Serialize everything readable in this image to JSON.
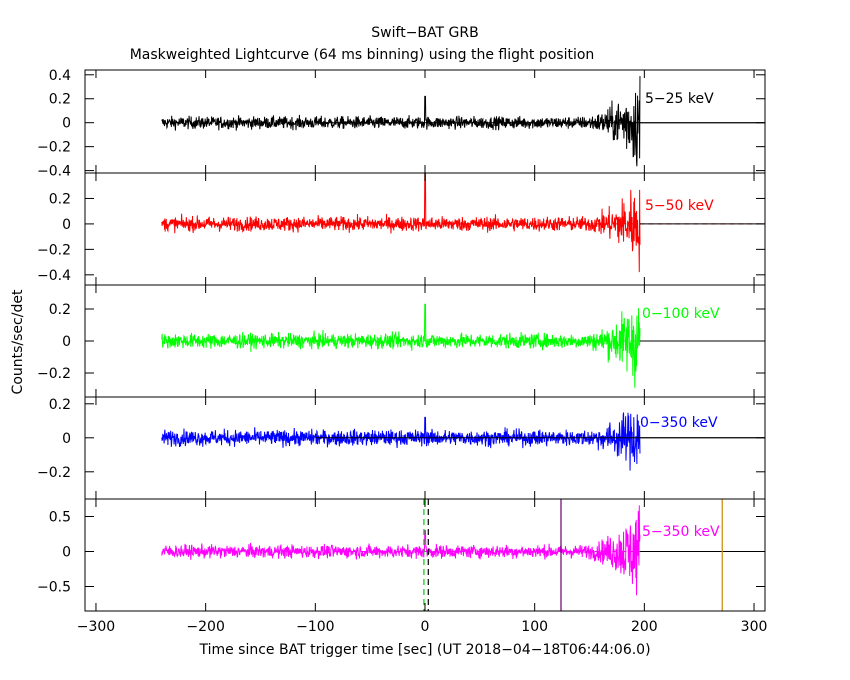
{
  "chart_data": {
    "type": "line",
    "title": "Swift−BAT GRB",
    "subtitle": "Maskweighted Lightcurve (64 ms binning) using the flight position",
    "xlabel": "Time since BAT trigger time [sec] (UT 2018−04−18T06:44:06.0)",
    "ylabel": "Counts/sec/det",
    "xlim": [
      -310,
      310
    ],
    "x_ticks": [
      -300,
      -200,
      -100,
      0,
      100,
      200,
      300
    ],
    "x_tick_labels": [
      "−300",
      "−200",
      "−100",
      "0",
      "100",
      "200",
      "300"
    ],
    "data_range": [
      -240,
      196
    ],
    "panels": [
      {
        "label": "5−25 keV",
        "color": "#000000",
        "ylim": [
          -0.42,
          0.44
        ],
        "ticks": [
          -0.4,
          -0.2,
          0,
          0.2,
          0.4
        ],
        "tick_labels": [
          "−0.4",
          "−0.2",
          "0",
          "0.2",
          "0.4"
        ],
        "noise_amplitude": 0.05,
        "spike_value": 0.22,
        "end_burst_peak": 0.4,
        "zero_line": "solid",
        "marks": []
      },
      {
        "label": "5−50 keV",
        "color": "#ff0000",
        "ylim": [
          -0.48,
          0.4
        ],
        "ticks": [
          -0.4,
          -0.2,
          0,
          0.2
        ],
        "tick_labels": [
          "−0.4",
          "−0.2",
          "0",
          "0.2"
        ],
        "noise_amplitude": 0.055,
        "spike_value": 0.4,
        "end_burst_peak": 0.35,
        "zero_line": "dashed",
        "marks": []
      },
      {
        "label": "0−100 keV",
        "color": "#00ff00",
        "ylim": [
          -0.35,
          0.35
        ],
        "ticks": [
          -0.2,
          0,
          0.2
        ],
        "tick_labels": [
          "−0.2",
          "0",
          "0.2"
        ],
        "noise_amplitude": 0.045,
        "spike_value": 0.23,
        "end_burst_peak": 0.3,
        "zero_line": "dashed",
        "marks": []
      },
      {
        "label": "0−350 keV",
        "color": "#0000ff",
        "ylim": [
          -0.36,
          0.24
        ],
        "ticks": [
          -0.2,
          0,
          0.2
        ],
        "tick_labels": [
          "−0.2",
          "0",
          "0.2"
        ],
        "noise_amplitude": 0.045,
        "spike_value": 0.12,
        "end_burst_peak": 0.22,
        "zero_line": "solid",
        "marks": []
      },
      {
        "label": "5−350 keV",
        "color": "#ff00ff",
        "ylim": [
          -0.85,
          0.75
        ],
        "ticks": [
          -0.5,
          0,
          0.5
        ],
        "tick_labels": [
          "−0.5",
          "0",
          "0.5"
        ],
        "noise_amplitude": 0.09,
        "spike_value": 0.3,
        "end_burst_peak": 0.7,
        "zero_line": "dashed",
        "marks": [
          {
            "x": -1,
            "color": "#00cc00",
            "style": "dashed"
          },
          {
            "x": 3,
            "color": "#000000",
            "style": "dashed"
          },
          {
            "x": 124,
            "color": "#660066",
            "style": "solid"
          },
          {
            "x": 271,
            "color": "#cc8800",
            "style": "solid"
          }
        ]
      }
    ]
  }
}
